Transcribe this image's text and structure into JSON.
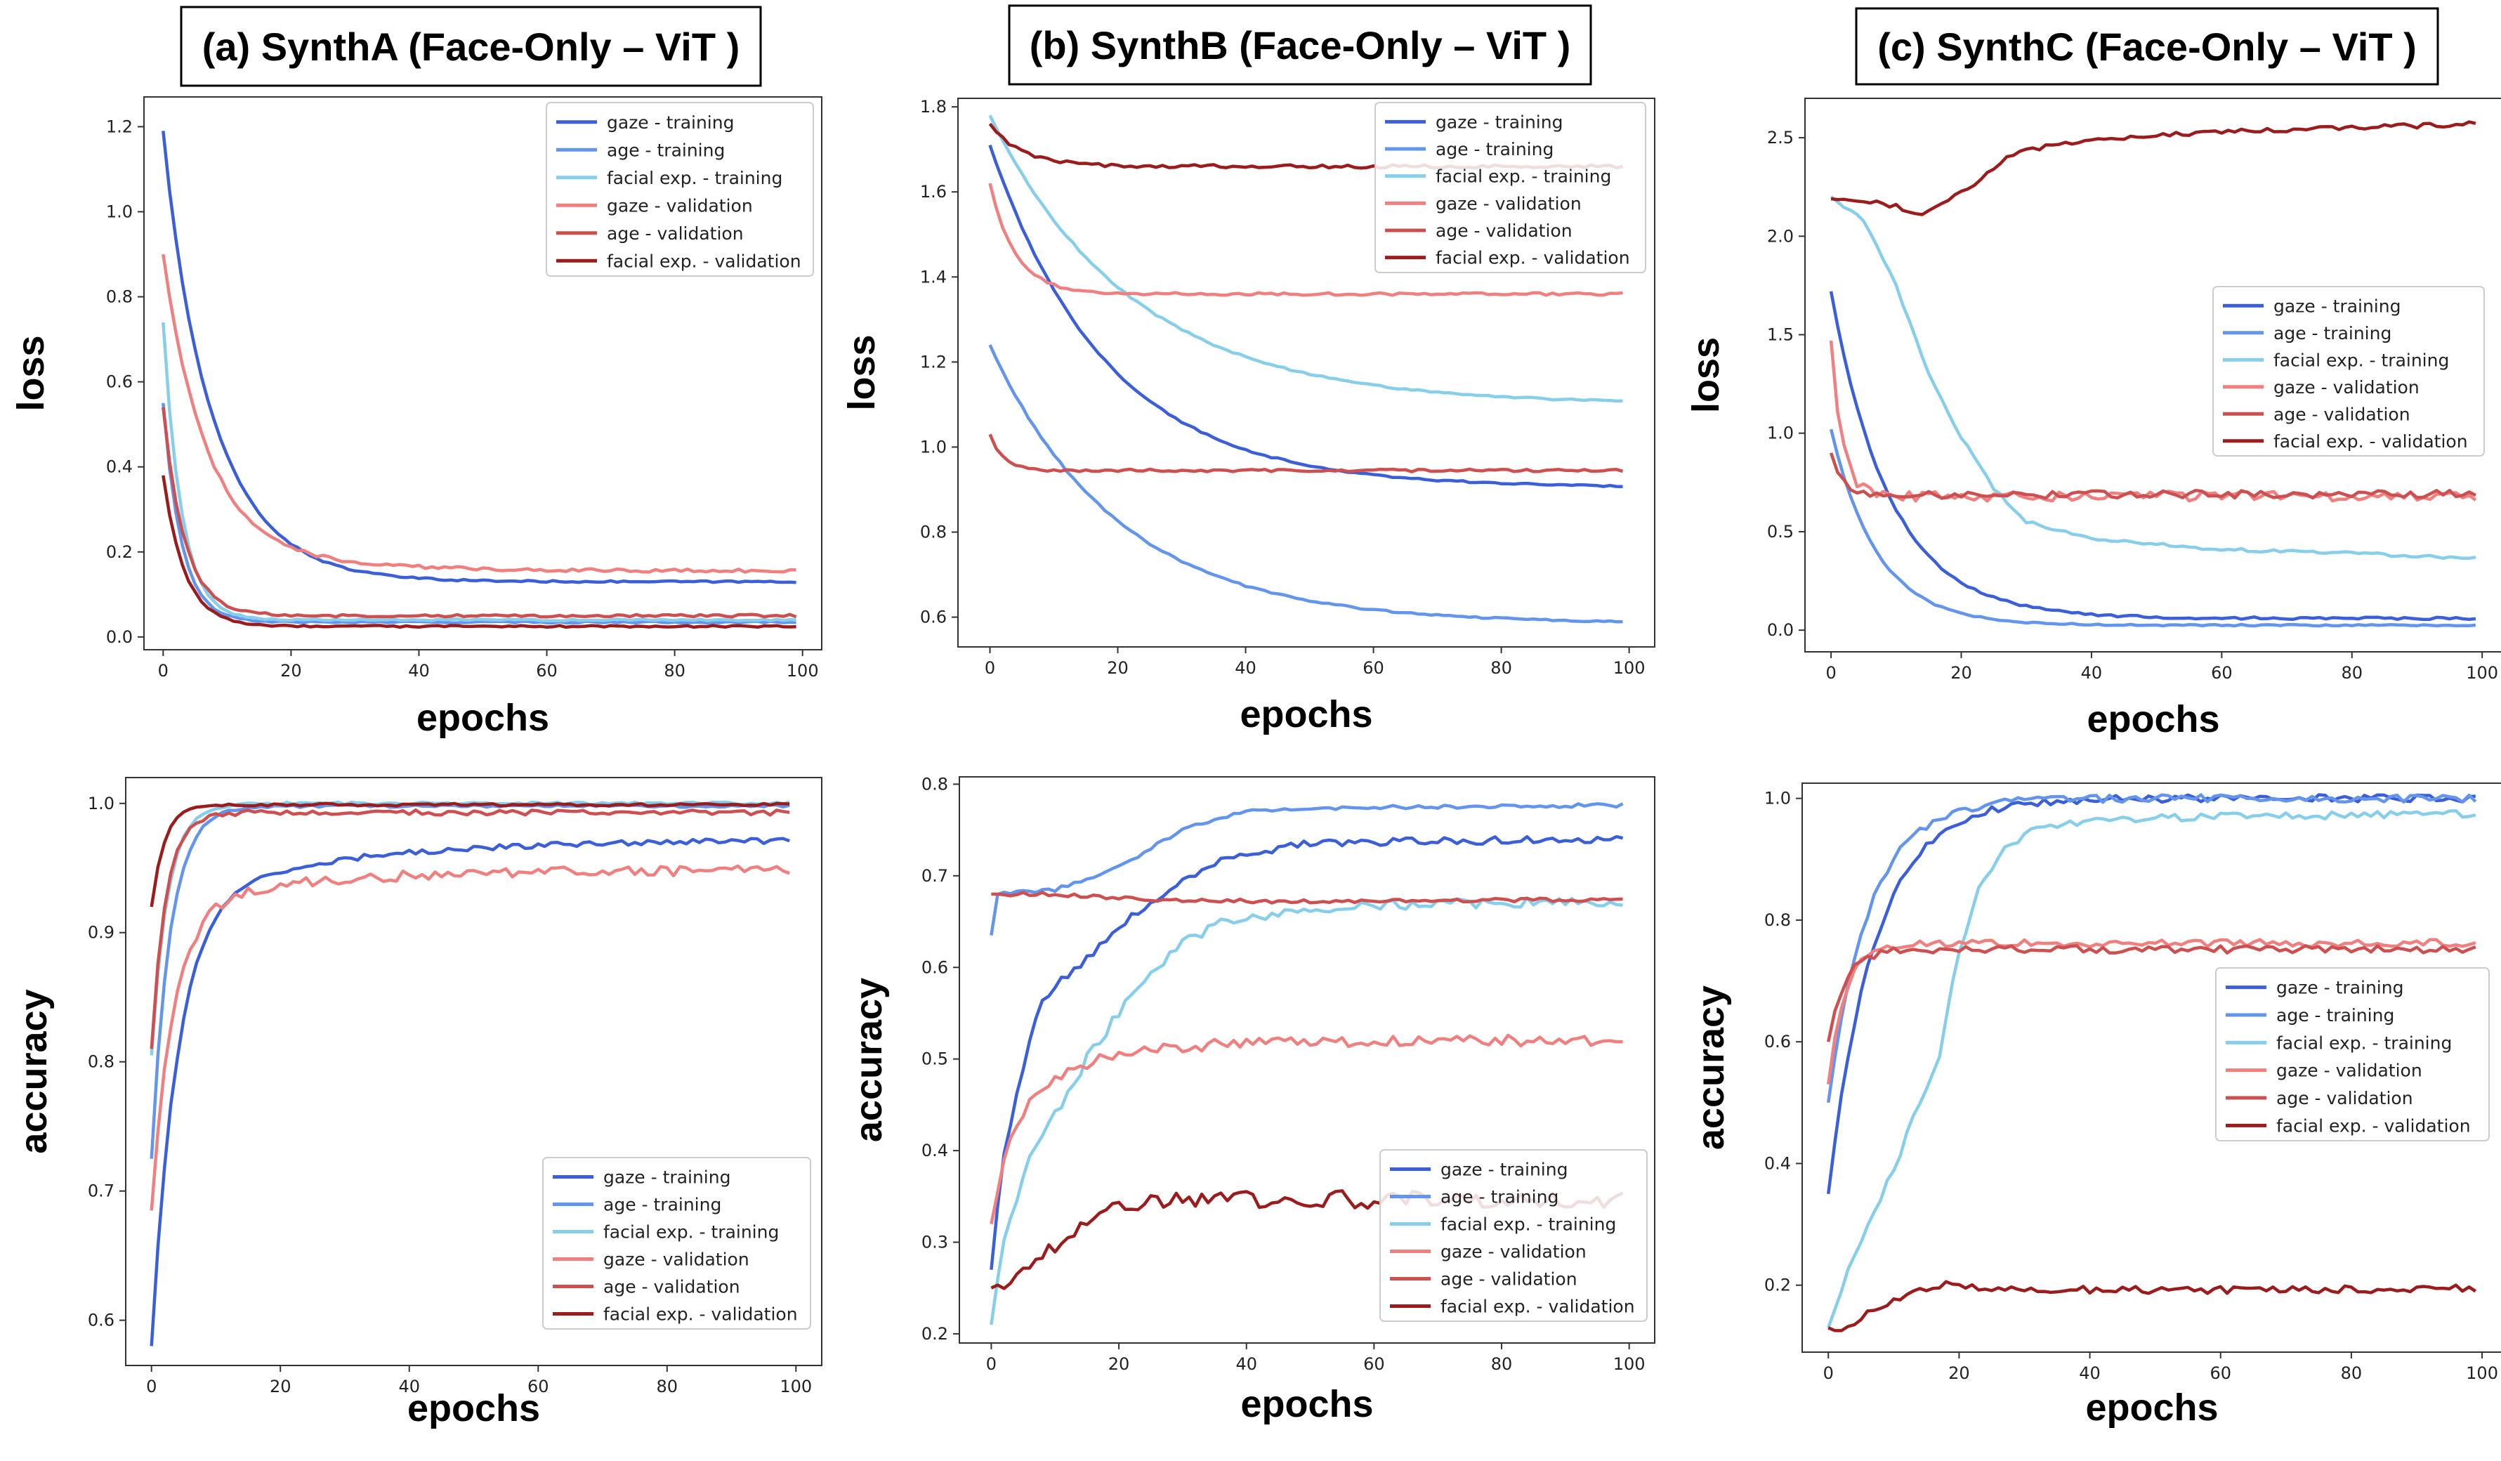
{
  "figure": {
    "colors": {
      "gaze_training": "#3b5fd9",
      "age_training": "#6495ed",
      "facial_training": "#87ceeb",
      "gaze_validation": "#f08080",
      "age_validation": "#cd4f4f",
      "facial_validation": "#9b1c1c"
    }
  },
  "chart_data": [
    {
      "id": "a-loss",
      "type": "line",
      "title": "(a) SynthA (Face-Only – ViT )",
      "xlabel": "epochs",
      "ylabel": "loss",
      "xlim": [
        -3,
        103
      ],
      "ylim": [
        -0.03,
        1.27
      ],
      "xticks": [
        "0",
        "20",
        "40",
        "60",
        "80",
        "100"
      ],
      "yticks": [
        "0.0",
        "0.2",
        "0.4",
        "0.6",
        "0.8",
        "1.0",
        "1.2"
      ],
      "legend_position": "upper right",
      "series": [
        {
          "name": "gaze - training",
          "key": "gaze_training",
          "start": 1.19,
          "end": 0.13,
          "rate": 0.12,
          "mid": 0.08,
          "mid_rate": 0.45,
          "noise": 0.002
        },
        {
          "name": "age - training",
          "key": "age_training",
          "start": 0.55,
          "end": 0.035,
          "rate": 0.35,
          "noise": 0.002
        },
        {
          "name": "facial exp. - training",
          "key": "facial_training",
          "start": 0.74,
          "end": 0.04,
          "rate": 0.35,
          "noise": 0.002
        },
        {
          "name": "gaze - validation",
          "key": "gaze_validation",
          "start": 0.9,
          "end": 0.155,
          "rate": 0.15,
          "mid": 0.06,
          "mid_rate": 0.05,
          "noise": 0.004
        },
        {
          "name": "age - validation",
          "key": "age_validation",
          "start": 0.54,
          "end": 0.05,
          "rate": 0.3,
          "noise": 0.003
        },
        {
          "name": "facial exp. - validation",
          "key": "facial_validation",
          "start": 0.38,
          "end": 0.025,
          "rate": 0.3,
          "noise": 0.002
        }
      ]
    },
    {
      "id": "b-loss",
      "type": "line",
      "title": "(b) SynthB (Face-Only – ViT )",
      "xlabel": "epochs",
      "ylabel": "loss",
      "xlim": [
        -5,
        104
      ],
      "ylim": [
        0.53,
        1.82
      ],
      "xticks": [
        "0",
        "20",
        "40",
        "60",
        "80",
        "100"
      ],
      "yticks": [
        "0.6",
        "0.8",
        "1.0",
        "1.2",
        "1.4",
        "1.6",
        "1.8"
      ],
      "legend_position": "upper right",
      "series": [
        {
          "name": "gaze - training",
          "key": "gaze_training",
          "start": 1.71,
          "end": 0.905,
          "rate": 0.055,
          "noise": 0.002
        },
        {
          "name": "age - training",
          "key": "age_training",
          "start": 1.24,
          "end": 0.585,
          "rate": 0.05,
          "noise": 0.002
        },
        {
          "name": "facial exp. - training",
          "key": "facial_training",
          "start": 1.78,
          "end": 1.1,
          "rate": 0.045,
          "noise": 0.002
        },
        {
          "name": "gaze - validation",
          "key": "gaze_validation",
          "start": 1.62,
          "end": 1.36,
          "rate": 0.25,
          "noise": 0.003
        },
        {
          "name": "age - validation",
          "key": "age_validation",
          "start": 1.03,
          "end": 0.945,
          "rate": 0.5,
          "noise": 0.003
        },
        {
          "name": "facial exp. - validation",
          "key": "facial_validation",
          "start": 1.76,
          "end": 1.66,
          "rate": 0.2,
          "noise": 0.004
        }
      ]
    },
    {
      "id": "c-loss",
      "type": "line",
      "title": "(c) SynthC (Face-Only – ViT )",
      "xlabel": "epochs",
      "ylabel": "loss",
      "xlim": [
        -4,
        103
      ],
      "ylim": [
        -0.11,
        2.7
      ],
      "xticks": [
        "0",
        "20",
        "40",
        "60",
        "80",
        "100"
      ],
      "yticks": [
        "0.0",
        "0.5",
        "1.0",
        "1.5",
        "2.0",
        "2.5"
      ],
      "legend_position": "center right",
      "series": [
        {
          "name": "gaze - training",
          "key": "gaze_training",
          "start": 1.72,
          "end": 0.06,
          "rate": 0.11,
          "noise": 0.006
        },
        {
          "name": "age - training",
          "key": "age_training",
          "start": 1.02,
          "end": 0.025,
          "rate": 0.14,
          "noise": 0.004
        },
        {
          "name": "facial exp. - training",
          "key": "facial_training",
          "points": [
            [
              0,
              2.2
            ],
            [
              5,
              2.08
            ],
            [
              10,
              1.75
            ],
            [
              15,
              1.3
            ],
            [
              20,
              0.98
            ],
            [
              25,
              0.72
            ],
            [
              30,
              0.55
            ],
            [
              40,
              0.46
            ],
            [
              60,
              0.41
            ],
            [
              80,
              0.39
            ],
            [
              99,
              0.365
            ]
          ],
          "noise": 0.008
        },
        {
          "name": "gaze - validation",
          "key": "gaze_validation",
          "start": 1.47,
          "end": 0.68,
          "rate": 0.6,
          "noise": 0.025
        },
        {
          "name": "age - validation",
          "key": "age_validation",
          "start": 0.9,
          "end": 0.69,
          "rate": 0.6,
          "noise": 0.02
        },
        {
          "name": "facial exp. - validation",
          "key": "facial_validation",
          "points": [
            [
              0,
              2.19
            ],
            [
              5,
              2.18
            ],
            [
              10,
              2.15
            ],
            [
              14,
              2.1
            ],
            [
              18,
              2.18
            ],
            [
              22,
              2.27
            ],
            [
              26,
              2.38
            ],
            [
              30,
              2.44
            ],
            [
              40,
              2.49
            ],
            [
              60,
              2.53
            ],
            [
              80,
              2.55
            ],
            [
              99,
              2.57
            ]
          ],
          "noise": 0.012
        }
      ]
    },
    {
      "id": "a-acc",
      "type": "line",
      "title": "",
      "xlabel": "epochs",
      "ylabel": "accuracy",
      "xlim": [
        -4,
        104
      ],
      "ylim": [
        0.565,
        1.02
      ],
      "xticks": [
        "0",
        "20",
        "40",
        "60",
        "80",
        "100"
      ],
      "yticks": [
        "0.6",
        "0.7",
        "0.8",
        "0.9",
        "1.0"
      ],
      "legend_position": "lower right",
      "series": [
        {
          "name": "gaze - training",
          "key": "gaze_training",
          "start": 0.58,
          "end": 0.972,
          "rate": 0.25,
          "mid": 0.05,
          "mid_rate": 0.04,
          "noise": 0.002
        },
        {
          "name": "age - training",
          "key": "age_training",
          "start": 0.725,
          "end": 0.998,
          "rate": 0.35,
          "noise": 0.001
        },
        {
          "name": "facial exp. - training",
          "key": "facial_training",
          "start": 0.805,
          "end": 1.0,
          "rate": 0.4,
          "noise": 0.001
        },
        {
          "name": "gaze - validation",
          "key": "gaze_validation",
          "start": 0.685,
          "end": 0.948,
          "rate": 0.3,
          "mid": 0.03,
          "mid_rate": 0.05,
          "noise": 0.004
        },
        {
          "name": "age - validation",
          "key": "age_validation",
          "start": 0.81,
          "end": 0.993,
          "rate": 0.45,
          "noise": 0.002
        },
        {
          "name": "facial exp. - validation",
          "key": "facial_validation",
          "start": 0.92,
          "end": 0.999,
          "rate": 0.5,
          "noise": 0.001
        }
      ]
    },
    {
      "id": "b-acc",
      "type": "line",
      "title": "",
      "xlabel": "epochs",
      "ylabel": "accuracy",
      "xlim": [
        -5,
        104
      ],
      "ylim": [
        0.19,
        0.808
      ],
      "xticks": [
        "0",
        "20",
        "40",
        "60",
        "80",
        "100"
      ],
      "yticks": [
        "0.2",
        "0.3",
        "0.4",
        "0.5",
        "0.6",
        "0.7",
        "0.8"
      ],
      "legend_position": "lower right",
      "series": [
        {
          "name": "gaze - training",
          "key": "gaze_training",
          "points": [
            [
              0,
              0.27
            ],
            [
              1,
              0.34
            ],
            [
              2,
              0.4
            ],
            [
              4,
              0.46
            ],
            [
              6,
              0.52
            ],
            [
              8,
              0.565
            ],
            [
              10,
              0.58
            ],
            [
              15,
              0.61
            ],
            [
              20,
              0.645
            ],
            [
              25,
              0.67
            ],
            [
              30,
              0.695
            ],
            [
              35,
              0.715
            ],
            [
              40,
              0.725
            ],
            [
              50,
              0.735
            ],
            [
              60,
              0.737
            ],
            [
              70,
              0.738
            ],
            [
              99,
              0.74
            ]
          ],
          "noise": 0.004
        },
        {
          "name": "age - training",
          "key": "age_training",
          "points": [
            [
              0,
              0.635
            ],
            [
              1,
              0.68
            ],
            [
              5,
              0.682
            ],
            [
              10,
              0.685
            ],
            [
              15,
              0.695
            ],
            [
              20,
              0.71
            ],
            [
              25,
              0.73
            ],
            [
              30,
              0.75
            ],
            [
              35,
              0.762
            ],
            [
              40,
              0.77
            ],
            [
              50,
              0.774
            ],
            [
              60,
              0.775
            ],
            [
              80,
              0.776
            ],
            [
              99,
              0.777
            ]
          ],
          "noise": 0.002
        },
        {
          "name": "facial exp. - training",
          "key": "facial_training",
          "points": [
            [
              0,
              0.21
            ],
            [
              1,
              0.26
            ],
            [
              2,
              0.3
            ],
            [
              4,
              0.35
            ],
            [
              6,
              0.39
            ],
            [
              8,
              0.42
            ],
            [
              10,
              0.44
            ],
            [
              15,
              0.5
            ],
            [
              20,
              0.55
            ],
            [
              25,
              0.59
            ],
            [
              30,
              0.625
            ],
            [
              35,
              0.645
            ],
            [
              40,
              0.655
            ],
            [
              50,
              0.665
            ],
            [
              60,
              0.668
            ],
            [
              80,
              0.67
            ],
            [
              99,
              0.672
            ]
          ],
          "noise": 0.006
        },
        {
          "name": "gaze - validation",
          "key": "gaze_validation",
          "points": [
            [
              0,
              0.32
            ],
            [
              2,
              0.39
            ],
            [
              4,
              0.43
            ],
            [
              6,
              0.45
            ],
            [
              8,
              0.465
            ],
            [
              10,
              0.48
            ],
            [
              15,
              0.495
            ],
            [
              20,
              0.505
            ],
            [
              30,
              0.513
            ],
            [
              40,
              0.518
            ],
            [
              60,
              0.52
            ],
            [
              99,
              0.52
            ]
          ],
          "noise": 0.006
        },
        {
          "name": "age - validation",
          "key": "age_validation",
          "points": [
            [
              0,
              0.68
            ],
            [
              10,
              0.68
            ],
            [
              20,
              0.676
            ],
            [
              30,
              0.673
            ],
            [
              50,
              0.672
            ],
            [
              70,
              0.673
            ],
            [
              99,
              0.674
            ]
          ],
          "noise": 0.002
        },
        {
          "name": "facial exp. - validation",
          "key": "facial_validation",
          "points": [
            [
              0,
              0.25
            ],
            [
              3,
              0.26
            ],
            [
              6,
              0.275
            ],
            [
              9,
              0.29
            ],
            [
              12,
              0.31
            ],
            [
              16,
              0.33
            ],
            [
              20,
              0.34
            ],
            [
              25,
              0.345
            ],
            [
              35,
              0.348
            ],
            [
              50,
              0.347
            ],
            [
              70,
              0.346
            ],
            [
              99,
              0.345
            ]
          ],
          "noise": 0.01
        }
      ]
    },
    {
      "id": "c-acc",
      "type": "line",
      "title": "",
      "xlabel": "epochs",
      "ylabel": "accuracy",
      "xlim": [
        -4,
        103
      ],
      "ylim": [
        0.09,
        1.025
      ],
      "xticks": [
        "0",
        "20",
        "40",
        "60",
        "80",
        "100"
      ],
      "yticks": [
        "0.2",
        "0.4",
        "0.6",
        "0.8",
        "1.0"
      ],
      "legend_position": "center right",
      "series": [
        {
          "name": "gaze - training",
          "key": "gaze_training",
          "start": 0.35,
          "end": 1.0,
          "rate": 0.14,
          "noise": 0.006
        },
        {
          "name": "age - training",
          "key": "age_training",
          "start": 0.5,
          "end": 1.0,
          "rate": 0.16,
          "noise": 0.006
        },
        {
          "name": "facial exp. - training",
          "key": "facial_training",
          "points": [
            [
              0,
              0.13
            ],
            [
              3,
              0.22
            ],
            [
              6,
              0.3
            ],
            [
              10,
              0.39
            ],
            [
              14,
              0.5
            ],
            [
              17,
              0.58
            ],
            [
              20,
              0.75
            ],
            [
              23,
              0.85
            ],
            [
              27,
              0.92
            ],
            [
              32,
              0.95
            ],
            [
              40,
              0.965
            ],
            [
              60,
              0.97
            ],
            [
              80,
              0.972
            ],
            [
              99,
              0.975
            ]
          ],
          "noise": 0.006
        },
        {
          "name": "gaze - validation",
          "key": "gaze_validation",
          "start": 0.53,
          "end": 0.762,
          "rate": 0.4,
          "noise": 0.006
        },
        {
          "name": "age - validation",
          "key": "age_validation",
          "start": 0.6,
          "end": 0.752,
          "rate": 0.4,
          "noise": 0.006
        },
        {
          "name": "facial exp. - validation",
          "key": "facial_validation",
          "points": [
            [
              0,
              0.13
            ],
            [
              2,
              0.12
            ],
            [
              4,
              0.14
            ],
            [
              7,
              0.16
            ],
            [
              10,
              0.175
            ],
            [
              14,
              0.19
            ],
            [
              18,
              0.2
            ],
            [
              25,
              0.195
            ],
            [
              40,
              0.192
            ],
            [
              70,
              0.192
            ],
            [
              99,
              0.195
            ]
          ],
          "noise": 0.006
        }
      ]
    }
  ]
}
